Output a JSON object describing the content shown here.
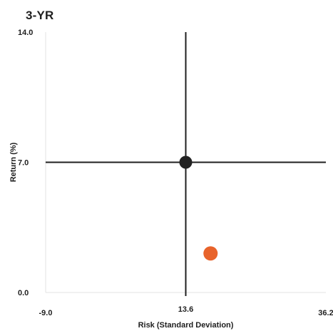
{
  "chart_data": {
    "type": "scatter",
    "title": "3-YR",
    "xlabel": "Risk (Standard Deviation)",
    "ylabel": "Return (%)",
    "xlim": [
      -9.0,
      36.2
    ],
    "ylim": [
      0.0,
      14.0
    ],
    "x_ticks": [
      "-9.0",
      "13.6",
      "36.2"
    ],
    "y_ticks": [
      "0.0",
      "7.0",
      "14.0"
    ],
    "crosshair": {
      "x": 13.6,
      "y": 7.0
    },
    "grid": false,
    "series": [
      {
        "color": "#222222",
        "points": [
          {
            "x": 13.6,
            "y": 7.0
          }
        ]
      },
      {
        "color": "#e8632b",
        "points": [
          {
            "x": 17.6,
            "y": 2.1
          }
        ]
      }
    ]
  }
}
